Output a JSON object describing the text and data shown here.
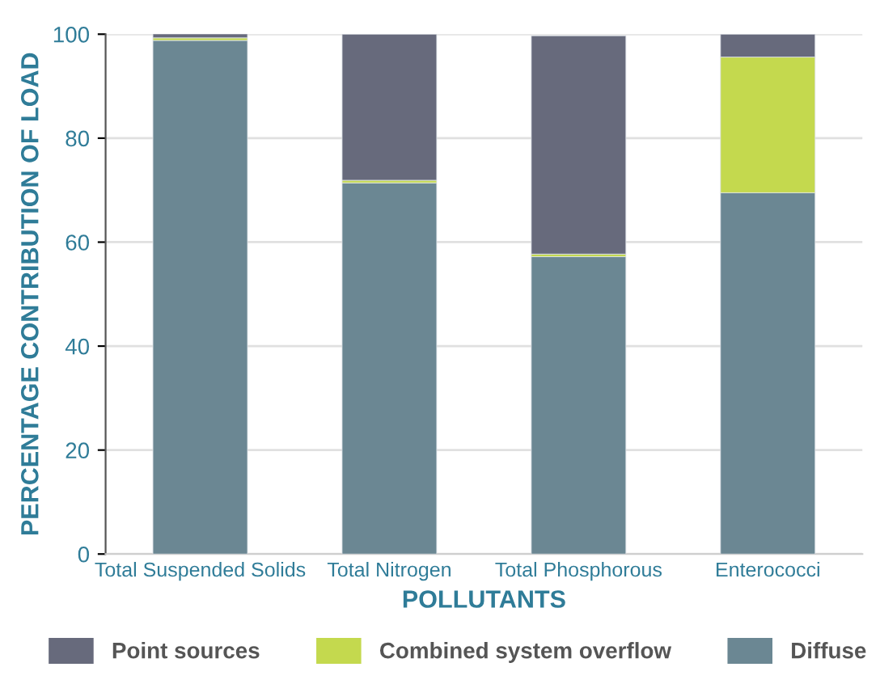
{
  "chart_data": {
    "type": "bar",
    "stacked": true,
    "xlabel": "POLLUTANTS",
    "ylabel": "PERCENTAGE CONTRIBUTION OF LOAD",
    "categories": [
      "Total Suspended Solids",
      "Total Nitrogen",
      "Total Phosphorous",
      "Enterococci"
    ],
    "series": [
      {
        "name": "Diffuse",
        "color": "#6b8793",
        "values": [
          98.8,
          71.4,
          57.2,
          69.5
        ]
      },
      {
        "name": "Combined system overflow",
        "color": "#c4d94e",
        "values": [
          0.5,
          0.5,
          0.5,
          26.1
        ]
      },
      {
        "name": "Point sources",
        "color": "#676a7c",
        "values": [
          0.8,
          28.1,
          42.0,
          4.4
        ]
      }
    ],
    "ylim": [
      0,
      100
    ],
    "yticks": [
      0,
      20,
      40,
      60,
      80,
      100
    ],
    "grid": "y",
    "legend": "bottom"
  }
}
